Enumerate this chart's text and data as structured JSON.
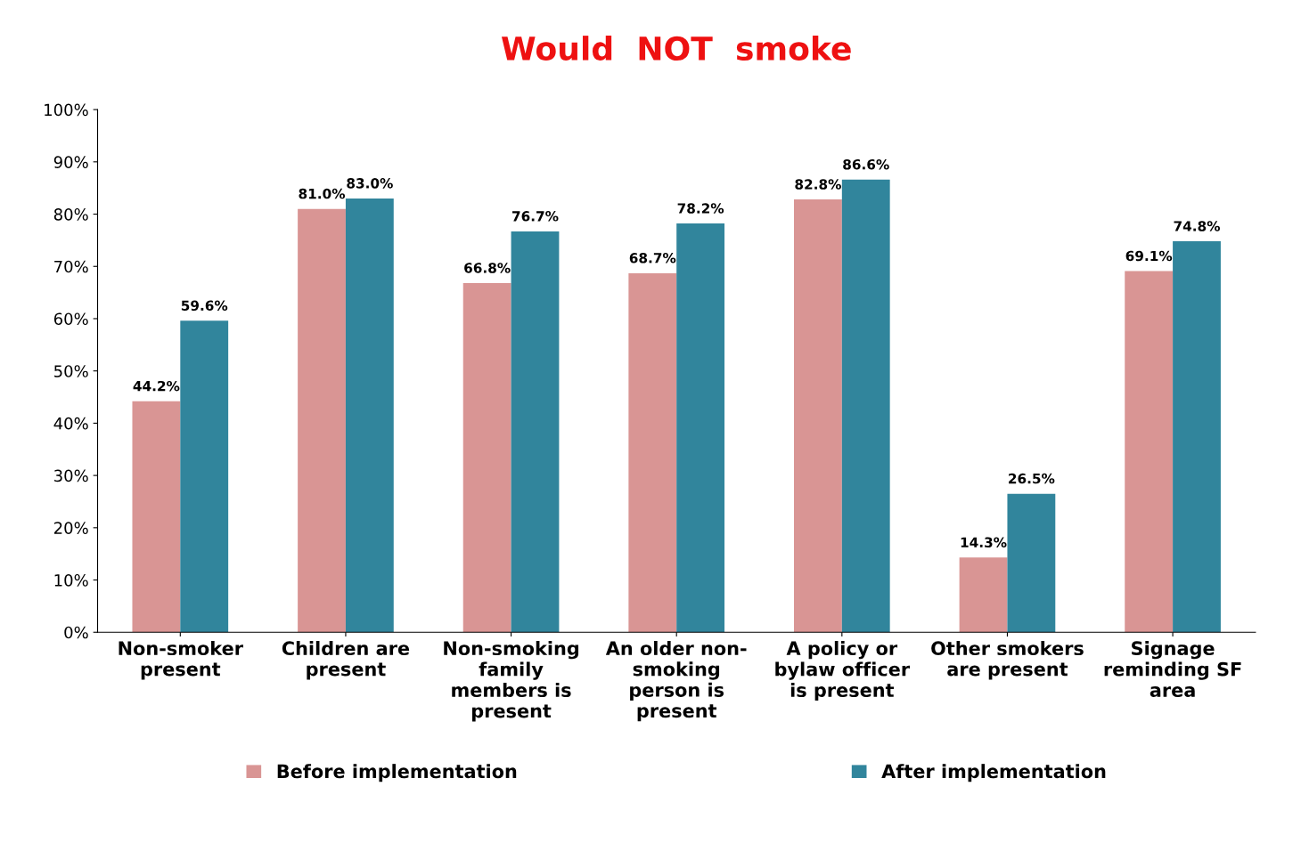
{
  "chart_data": {
    "type": "bar",
    "title": "Would  NOT  smoke",
    "categories": [
      "Non-smoker\npresent",
      "Children are\npresent",
      "Non-smoking\nfamily\nmembers is\npresent",
      "An older non-\nsmoking\nperson is\npresent",
      "A policy or\nbylaw officer\nis present",
      "Other smokers\nare present",
      "Signage\nreminding SF\narea"
    ],
    "series": [
      {
        "name": "Before implementation",
        "color": "#d99594",
        "values": [
          44.2,
          81.0,
          66.8,
          68.7,
          82.8,
          14.3,
          69.1
        ],
        "value_labels": [
          "44.2%",
          "81.0%",
          "66.8%",
          "68.7%",
          "82.8%",
          "14.3%",
          "69.1%"
        ]
      },
      {
        "name": "After implementation",
        "color": "#31859c",
        "values": [
          59.6,
          83.0,
          76.7,
          78.2,
          86.6,
          26.5,
          74.8
        ],
        "value_labels": [
          "59.6%",
          "83.0%",
          "76.7%",
          "78.2%",
          "86.6%",
          "26.5%",
          "74.8%"
        ]
      }
    ],
    "ylim": [
      0,
      100
    ],
    "yticks": [
      {
        "value": 0,
        "label": "0%"
      },
      {
        "value": 10,
        "label": "10%"
      },
      {
        "value": 20,
        "label": "20%"
      },
      {
        "value": 30,
        "label": "30%"
      },
      {
        "value": 40,
        "label": "40%"
      },
      {
        "value": 50,
        "label": "50%"
      },
      {
        "value": 60,
        "label": "60%"
      },
      {
        "value": 70,
        "label": "70%"
      },
      {
        "value": 80,
        "label": "80%"
      },
      {
        "value": 90,
        "label": "90%"
      },
      {
        "value": 100,
        "label": "100%"
      }
    ],
    "grid": false,
    "legend": "bottom"
  }
}
